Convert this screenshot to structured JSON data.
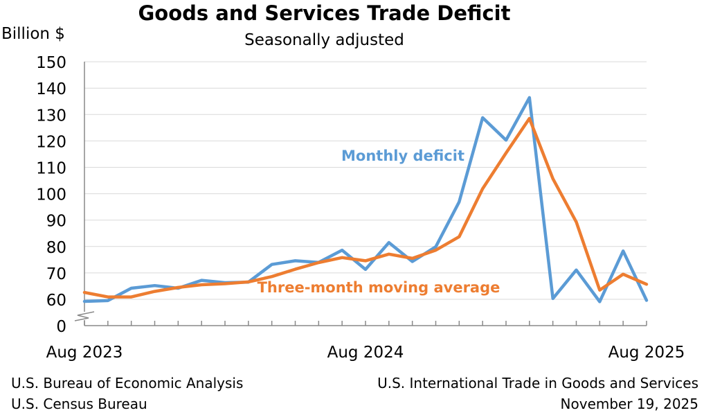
{
  "chart_data": {
    "type": "line",
    "title": "Goods and Services Trade Deficit",
    "subtitle": "Seasonally adjusted",
    "ylabel": "Billion $",
    "y_ticks": [
      0,
      60,
      70,
      80,
      90,
      100,
      110,
      120,
      130,
      140,
      150
    ],
    "ylim": [
      55,
      150
    ],
    "axis_break": true,
    "grid": true,
    "x": [
      "Aug 2023",
      "Sep 2023",
      "Oct 2023",
      "Nov 2023",
      "Dec 2023",
      "Jan 2024",
      "Feb 2024",
      "Mar 2024",
      "Apr 2024",
      "May 2024",
      "Jun 2024",
      "Jul 2024",
      "Aug 2024",
      "Sep 2024",
      "Oct 2024",
      "Nov 2024",
      "Dec 2024",
      "Jan 2025",
      "Feb 2025",
      "Mar 2025",
      "Apr 2025",
      "May 2025",
      "Jun 2025",
      "Jul 2025",
      "Aug 2025"
    ],
    "x_tick_labels": [
      {
        "index": 0,
        "label": "Aug 2023"
      },
      {
        "index": 12,
        "label": "Aug 2024"
      },
      {
        "index": 24,
        "label": "Aug 2025"
      }
    ],
    "series": [
      {
        "name": "Monthly deficit",
        "color": "#5b9bd5",
        "values": [
          59.2,
          59.5,
          64.2,
          65.2,
          64.2,
          67.2,
          66.3,
          66.5,
          73.2,
          74.6,
          74.0,
          78.6,
          71.3,
          81.5,
          74.3,
          79.9,
          96.9,
          128.8,
          120.3,
          136.4,
          60.3,
          71.1,
          59.1,
          78.3,
          59.6
        ]
      },
      {
        "name": "Three-month moving average",
        "color": "#ed7d31",
        "values": [
          62.6,
          60.9,
          60.9,
          63.0,
          64.5,
          65.5,
          65.9,
          66.6,
          68.6,
          71.4,
          73.9,
          75.8,
          74.6,
          77.1,
          75.5,
          78.6,
          83.7,
          101.9,
          115.4,
          128.5,
          105.7,
          89.3,
          63.5,
          69.5,
          65.7
        ]
      }
    ]
  },
  "footer": {
    "left_line1": "U.S. Bureau of Economic Analysis",
    "left_line2": "U.S. Census Bureau",
    "right_line1": "U.S. International Trade in Goods and Services",
    "right_line2": "November 19, 2025"
  }
}
